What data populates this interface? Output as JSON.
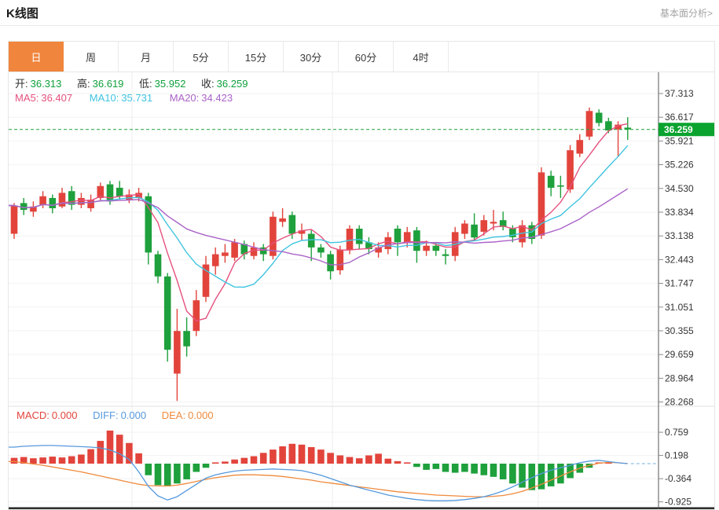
{
  "header": {
    "title": "K线图",
    "link_label": "基本面分析>"
  },
  "tabs": {
    "items": [
      {
        "name": "daily",
        "label": "日",
        "active": true
      },
      {
        "name": "weekly",
        "label": "周",
        "active": false
      },
      {
        "name": "monthly",
        "label": "月",
        "active": false
      },
      {
        "name": "5min",
        "label": "5分",
        "active": false
      },
      {
        "name": "15min",
        "label": "15分",
        "active": false
      },
      {
        "name": "30min",
        "label": "30分",
        "active": false
      },
      {
        "name": "60min",
        "label": "60分",
        "active": false
      },
      {
        "name": "4hour",
        "label": "4时",
        "active": false
      }
    ]
  },
  "legend": {
    "ohlc": [
      {
        "label": "开:",
        "value": "36.313"
      },
      {
        "label": "高:",
        "value": "36.619"
      },
      {
        "label": "低:",
        "value": "35.952"
      },
      {
        "label": "收:",
        "value": "36.259"
      }
    ],
    "ma": [
      {
        "label": "MA5:",
        "value": "36.407"
      },
      {
        "label": "MA10:",
        "value": "35.731"
      },
      {
        "label": "MA20:",
        "value": "34.423"
      }
    ],
    "macd": [
      {
        "label": "MACD:",
        "value": "0.000"
      },
      {
        "label": "DIFF:",
        "value": "0.000"
      },
      {
        "label": "DEA:",
        "value": "0.000"
      }
    ]
  },
  "colors": {
    "up": "#e2443c",
    "down": "#1ea03c",
    "ma5": "#e5517e",
    "ma10": "#3fc4e0",
    "ma20": "#ab63c8",
    "diff": "#5599dd",
    "dea": "#ef8a3c",
    "macd_label": "#e2443c",
    "value_green": "#0fa03c",
    "tab_active_bg": "#f0853d",
    "price_tag_bg": "#0aa32f",
    "current_line": "#21a13c",
    "axis_text": "#333333",
    "grid": "#f2f2f2",
    "vgrid": "#ececec",
    "axis_line": "#555555",
    "dark_bottom": "#232323"
  },
  "chart_data": [
    {
      "type": "candlestick",
      "title": "K线图 (日)",
      "period": "日",
      "legend_position": "top-left",
      "grid": true,
      "price_axis_side": "right",
      "y_ticks": [
        37.313,
        36.617,
        35.921,
        35.226,
        34.53,
        33.834,
        33.138,
        32.443,
        31.747,
        31.051,
        30.355,
        29.659,
        28.964,
        28.268
      ],
      "current_price": 36.259,
      "ohlc_latest": {
        "open": 36.313,
        "high": 36.619,
        "low": 35.952,
        "close": 36.259
      },
      "ma_latest": {
        "ma5": 36.407,
        "ma10": 35.731,
        "ma20": 34.423
      },
      "ma_windows": [
        5,
        10,
        20
      ],
      "candles": [
        [
          33.2,
          34.1,
          33.05,
          34.03
        ],
        [
          34.1,
          34.25,
          33.75,
          33.9
        ],
        [
          33.85,
          34.15,
          33.7,
          34.0
        ],
        [
          34.05,
          34.45,
          33.95,
          34.3
        ],
        [
          34.25,
          34.35,
          33.8,
          33.95
        ],
        [
          34.0,
          34.55,
          33.95,
          34.4
        ],
        [
          34.45,
          34.6,
          33.9,
          34.05
        ],
        [
          34.05,
          34.4,
          33.95,
          34.25
        ],
        [
          33.95,
          34.35,
          33.85,
          34.2
        ],
        [
          34.25,
          34.7,
          34.15,
          34.6
        ],
        [
          34.65,
          34.75,
          34.05,
          34.15
        ],
        [
          34.55,
          34.75,
          34.2,
          34.3
        ],
        [
          34.2,
          34.5,
          34.1,
          34.35
        ],
        [
          34.25,
          34.55,
          34.15,
          34.4
        ],
        [
          34.3,
          34.4,
          32.3,
          32.65
        ],
        [
          32.6,
          32.7,
          31.75,
          31.95
        ],
        [
          31.95,
          32.05,
          29.45,
          29.8
        ],
        [
          29.1,
          31.0,
          28.3,
          30.35
        ],
        [
          30.35,
          30.75,
          29.6,
          29.9
        ],
        [
          30.35,
          31.55,
          30.2,
          31.25
        ],
        [
          31.35,
          32.55,
          31.2,
          32.3
        ],
        [
          32.25,
          32.8,
          32.0,
          32.6
        ],
        [
          32.55,
          32.9,
          32.35,
          32.65
        ],
        [
          32.5,
          33.05,
          32.4,
          32.95
        ],
        [
          32.9,
          33.0,
          32.45,
          32.6
        ],
        [
          32.55,
          32.95,
          32.45,
          32.8
        ],
        [
          32.8,
          32.9,
          32.4,
          32.6
        ],
        [
          32.55,
          33.85,
          32.45,
          33.7
        ],
        [
          33.55,
          33.95,
          33.4,
          33.65
        ],
        [
          33.75,
          33.85,
          33.05,
          33.2
        ],
        [
          33.2,
          33.5,
          33.0,
          33.3
        ],
        [
          33.2,
          33.3,
          32.4,
          32.8
        ],
        [
          32.8,
          32.9,
          32.5,
          32.65
        ],
        [
          32.6,
          32.7,
          31.86,
          32.1
        ],
        [
          32.13,
          32.85,
          32.0,
          32.74
        ],
        [
          32.74,
          33.45,
          32.6,
          33.35
        ],
        [
          33.35,
          33.45,
          32.75,
          32.9
        ],
        [
          32.95,
          33.1,
          32.6,
          32.75
        ],
        [
          32.65,
          32.95,
          32.5,
          32.8
        ],
        [
          32.75,
          33.25,
          32.6,
          33.1
        ],
        [
          33.35,
          33.45,
          32.55,
          32.95
        ],
        [
          32.95,
          33.4,
          32.8,
          33.25
        ],
        [
          33.3,
          33.4,
          32.35,
          32.7
        ],
        [
          32.7,
          33.0,
          32.55,
          32.85
        ],
        [
          32.85,
          32.95,
          32.55,
          32.7
        ],
        [
          32.6,
          32.75,
          32.3,
          32.55
        ],
        [
          32.55,
          33.4,
          32.4,
          33.25
        ],
        [
          33.2,
          33.6,
          33.05,
          33.5
        ],
        [
          33.47,
          33.8,
          33.0,
          33.09
        ],
        [
          33.26,
          33.75,
          33.15,
          33.6
        ],
        [
          33.5,
          33.9,
          33.3,
          33.55
        ],
        [
          33.6,
          33.85,
          33.3,
          33.4
        ],
        [
          33.35,
          33.45,
          32.95,
          33.1
        ],
        [
          32.95,
          33.6,
          32.8,
          33.45
        ],
        [
          33.45,
          33.55,
          32.9,
          33.05
        ],
        [
          33.15,
          35.15,
          33.05,
          35.0
        ],
        [
          34.9,
          35.05,
          34.3,
          34.55
        ],
        [
          34.62,
          34.9,
          34.25,
          34.58
        ],
        [
          34.5,
          35.8,
          34.4,
          35.65
        ],
        [
          35.55,
          36.12,
          35.45,
          35.95
        ],
        [
          36.05,
          36.9,
          35.95,
          36.8
        ],
        [
          36.75,
          36.85,
          36.35,
          36.45
        ],
        [
          36.5,
          36.6,
          36.15,
          36.23
        ],
        [
          36.26,
          36.5,
          35.45,
          36.4
        ],
        [
          36.313,
          36.619,
          35.952,
          36.259
        ]
      ]
    },
    {
      "type": "macd",
      "title": "MACD(12,26,9)",
      "y_ticks": [
        0.759,
        0.198,
        -0.364,
        -0.925
      ],
      "latest": {
        "macd": 0.0,
        "diff": 0.0,
        "dea": 0.0
      },
      "histogram": [
        0.14,
        0.16,
        0.13,
        0.15,
        0.17,
        0.15,
        0.18,
        0.22,
        0.35,
        0.55,
        0.8,
        0.7,
        0.5,
        0.25,
        -0.28,
        -0.52,
        -0.55,
        -0.48,
        -0.38,
        -0.2,
        -0.1,
        0.03,
        0.05,
        0.1,
        0.14,
        0.18,
        0.26,
        0.34,
        0.42,
        0.48,
        0.46,
        0.4,
        0.34,
        0.26,
        0.2,
        0.16,
        0.13,
        0.2,
        0.24,
        0.12,
        0.06,
        0.03,
        -0.08,
        -0.15,
        -0.13,
        -0.2,
        -0.22,
        -0.2,
        -0.24,
        -0.28,
        -0.32,
        -0.38,
        -0.48,
        -0.58,
        -0.64,
        -0.62,
        -0.55,
        -0.48,
        -0.35,
        -0.22,
        -0.1,
        0.03,
        0.01,
        0.0,
        0.0
      ],
      "diff_line": [
        0.4,
        0.42,
        0.43,
        0.44,
        0.44,
        0.43,
        0.42,
        0.41,
        0.4,
        0.38,
        0.33,
        0.24,
        0.1,
        -0.2,
        -0.55,
        -0.78,
        -0.88,
        -0.8,
        -0.65,
        -0.5,
        -0.35,
        -0.27,
        -0.22,
        -0.18,
        -0.16,
        -0.15,
        -0.14,
        -0.13,
        -0.14,
        -0.15,
        -0.17,
        -0.22,
        -0.28,
        -0.36,
        -0.44,
        -0.52,
        -0.58,
        -0.64,
        -0.7,
        -0.76,
        -0.8,
        -0.84,
        -0.87,
        -0.89,
        -0.9,
        -0.9,
        -0.89,
        -0.87,
        -0.84,
        -0.8,
        -0.74,
        -0.66,
        -0.56,
        -0.45,
        -0.34,
        -0.24,
        -0.16,
        -0.1,
        -0.04,
        0.02,
        0.06,
        0.08,
        0.05,
        0.02,
        0.0
      ],
      "dea_line": [
        0.05,
        0.02,
        -0.01,
        -0.04,
        -0.08,
        -0.12,
        -0.16,
        -0.2,
        -0.25,
        -0.3,
        -0.35,
        -0.4,
        -0.45,
        -0.5,
        -0.53,
        -0.54,
        -0.54,
        -0.52,
        -0.48,
        -0.43,
        -0.38,
        -0.34,
        -0.31,
        -0.28,
        -0.27,
        -0.27,
        -0.28,
        -0.29,
        -0.31,
        -0.34,
        -0.37,
        -0.4,
        -0.44,
        -0.47,
        -0.5,
        -0.53,
        -0.56,
        -0.59,
        -0.62,
        -0.65,
        -0.68,
        -0.7,
        -0.72,
        -0.74,
        -0.76,
        -0.77,
        -0.78,
        -0.79,
        -0.8,
        -0.8,
        -0.79,
        -0.77,
        -0.73,
        -0.67,
        -0.59,
        -0.5,
        -0.4,
        -0.3,
        -0.2,
        -0.11,
        -0.04,
        0.01,
        0.03,
        0.02,
        0.0
      ]
    }
  ]
}
